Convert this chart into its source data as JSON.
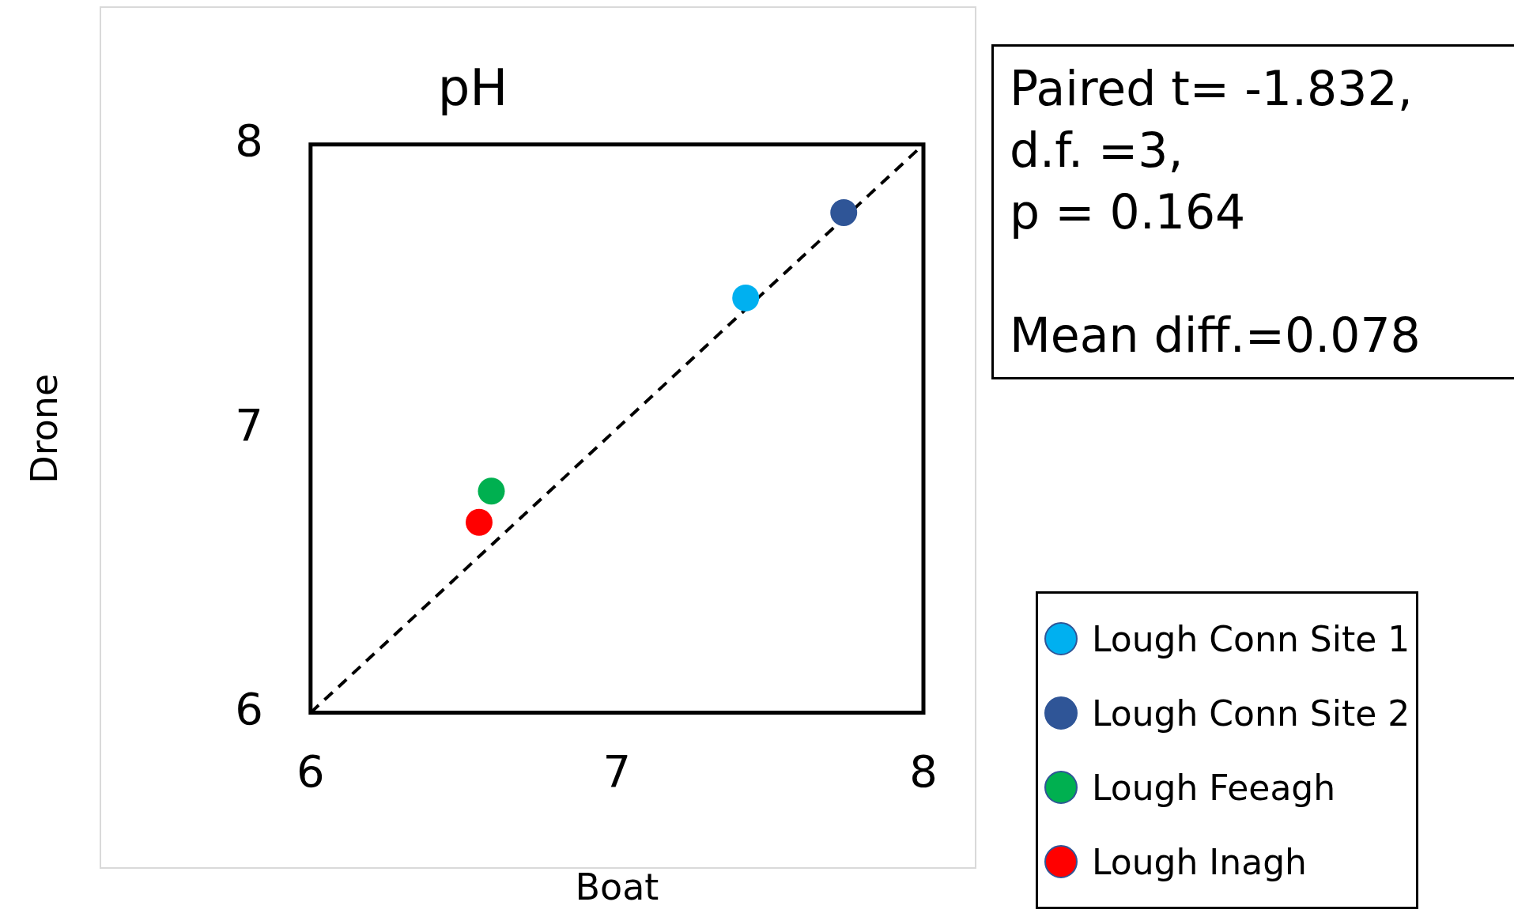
{
  "chart_data": {
    "type": "scatter",
    "title": "pH",
    "xlabel": "Boat",
    "ylabel": "Drone",
    "xlim": [
      6,
      8
    ],
    "xticks": [
      6,
      7,
      8
    ],
    "ylim": [
      6,
      8
    ],
    "yticks": [
      6,
      7,
      8
    ],
    "grid": false,
    "legend": "right",
    "marker": "circle",
    "annotations": [
      "Paired t= -1.832,",
      "d.f. =3,",
      "p = 0.164",
      "Mean diff.=0.078"
    ],
    "series": [
      {
        "name": "Lough Conn Site 1",
        "color": "#00b0f0",
        "x": [
          7.42
        ],
        "values": [
          7.46
        ]
      },
      {
        "name": "Lough Conn Site 2",
        "color": "#2f5597",
        "x": [
          7.74
        ],
        "values": [
          7.76
        ]
      },
      {
        "name": "Lough Feeagh",
        "color": "#00b050",
        "x": [
          6.59
        ],
        "values": [
          6.78
        ]
      },
      {
        "name": "Lough Inagh",
        "color": "#ff0000",
        "x": [
          6.55
        ],
        "values": [
          6.67
        ]
      },
      {
        "type": "line",
        "color": "#000000",
        "line_style": "dashed",
        "marker": "none",
        "x": [
          6,
          8
        ],
        "values": [
          6,
          8
        ]
      }
    ]
  }
}
